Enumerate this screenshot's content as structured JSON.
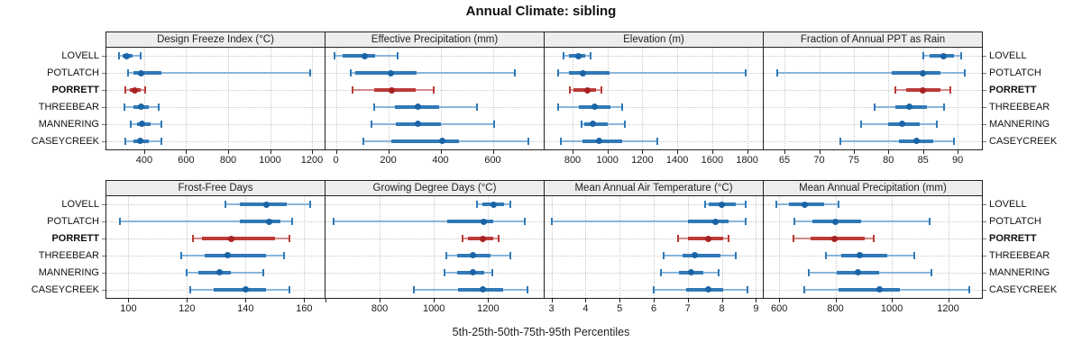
{
  "colors": {
    "blue_dot": "#1a64a5",
    "blue_bar": "#3079b6",
    "blue_whisker": "#8ab5da",
    "red_dot": "#a82123",
    "red_bar": "#bb3a38",
    "red_whisker": "#d28a8a",
    "grid": "#c9c9c9",
    "strip_bg": "#ededed",
    "border": "#222222"
  },
  "chart_data": {
    "type": "trellis interval plot (5th-25th-50th-75th-95th percentile dot-whisker, horizontal)",
    "title": "Annual Climate: sibling",
    "caption": "5th-25th-50th-75th-95th Percentiles",
    "categories": [
      "LOVELL",
      "POTLATCH",
      "PORRETT",
      "THREEBEAR",
      "MANNERING",
      "CASEYCREEK"
    ],
    "highlight": "PORRETT",
    "legend_position": "none",
    "grid": "dotted",
    "panels": [
      {
        "title": "Design Freeze Index (°C)",
        "xlim": [
          220,
          1260
        ],
        "ticks": [
          {
            "v": 400,
            "label": "400"
          },
          {
            "v": 600,
            "label": "600"
          },
          {
            "v": 800,
            "label": "800"
          },
          {
            "v": 1000,
            "label": "1000"
          },
          {
            "v": 1200,
            "label": "1200"
          }
        ],
        "percentiles": [
          [
            280,
            297,
            315,
            345,
            385
          ],
          [
            325,
            350,
            385,
            480,
            1190
          ],
          [
            310,
            330,
            355,
            385,
            405
          ],
          [
            305,
            350,
            385,
            420,
            470
          ],
          [
            335,
            365,
            390,
            430,
            480
          ],
          [
            310,
            350,
            380,
            420,
            480
          ]
        ]
      },
      {
        "title": "Effective Precipitation (mm)",
        "xlim": [
          -40,
          795
        ],
        "ticks": [
          {
            "v": 0,
            "label": "0"
          },
          {
            "v": 200,
            "label": "200"
          },
          {
            "v": 400,
            "label": "400"
          },
          {
            "v": 600,
            "label": "600"
          }
        ],
        "percentiles": [
          [
            -5,
            25,
            110,
            150,
            235
          ],
          [
            55,
            75,
            210,
            310,
            685
          ],
          [
            65,
            145,
            215,
            305,
            375
          ],
          [
            145,
            225,
            315,
            395,
            540
          ],
          [
            135,
            230,
            315,
            400,
            605
          ],
          [
            105,
            210,
            405,
            470,
            735
          ]
        ]
      },
      {
        "title": "Elevation (m)",
        "xlim": [
          640,
          1890
        ],
        "ticks": [
          {
            "v": 800,
            "label": "800"
          },
          {
            "v": 1000,
            "label": "1000"
          },
          {
            "v": 1200,
            "label": "1200"
          },
          {
            "v": 1400,
            "label": "1400"
          },
          {
            "v": 1600,
            "label": "1600"
          },
          {
            "v": 1800,
            "label": "1800"
          }
        ],
        "percentiles": [
          [
            750,
            780,
            831,
            873,
            905
          ],
          [
            715,
            780,
            858,
            1010,
            1790
          ],
          [
            785,
            805,
            884,
            933,
            965
          ],
          [
            715,
            837,
            925,
            1015,
            1085
          ],
          [
            853,
            868,
            915,
            1000,
            1098
          ],
          [
            735,
            855,
            950,
            1085,
            1285
          ]
        ]
      },
      {
        "title": "Fraction of Annual PPT as Rain",
        "xlim": [
          62,
          93.5
        ],
        "ticks": [
          {
            "v": 65,
            "label": "65"
          },
          {
            "v": 70,
            "label": "70"
          },
          {
            "v": 75,
            "label": "75"
          },
          {
            "v": 80,
            "label": "80"
          },
          {
            "v": 85,
            "label": "85"
          },
          {
            "v": 90,
            "label": "90"
          }
        ],
        "percentiles": [
          [
            85,
            86,
            88,
            89.5,
            90.5
          ],
          [
            64,
            80.5,
            85,
            87.5,
            91
          ],
          [
            81,
            82.5,
            85,
            87.5,
            89
          ],
          [
            78,
            81,
            83,
            85.5,
            88
          ],
          [
            76,
            80,
            82,
            84.5,
            87
          ],
          [
            73,
            81.5,
            84,
            86.5,
            89.5
          ]
        ]
      },
      {
        "title": "Frost-Free Days",
        "xlim": [
          92.5,
          167
        ],
        "ticks": [
          {
            "v": 100,
            "label": "100"
          },
          {
            "v": 120,
            "label": "120"
          },
          {
            "v": 140,
            "label": "140"
          },
          {
            "v": 160,
            "label": "160"
          }
        ],
        "percentiles": [
          [
            133,
            138,
            147,
            154,
            162
          ],
          [
            97,
            138,
            148,
            152,
            156
          ],
          [
            122,
            125,
            135,
            150,
            155
          ],
          [
            118,
            126,
            134,
            147,
            153
          ],
          [
            120,
            124,
            131,
            135,
            146
          ],
          [
            121,
            129,
            140,
            147,
            155
          ]
        ]
      },
      {
        "title": "Growing Degree Days (°C)",
        "xlim": [
          600,
          1405
        ],
        "ticks": [
          {
            "v": 600,
            "label": ""
          },
          {
            "v": 800,
            "label": "800"
          },
          {
            "v": 1000,
            "label": "1000"
          },
          {
            "v": 1200,
            "label": "1200"
          }
        ],
        "percentiles": [
          [
            1160,
            1178,
            1220,
            1260,
            1282
          ],
          [
            630,
            1050,
            1185,
            1218,
            1335
          ],
          [
            1105,
            1125,
            1180,
            1218,
            1240
          ],
          [
            1045,
            1085,
            1145,
            1210,
            1282
          ],
          [
            1040,
            1085,
            1145,
            1185,
            1215
          ],
          [
            925,
            1090,
            1180,
            1257,
            1345
          ]
        ]
      },
      {
        "title": "Mean Annual Air Temperature (°C)",
        "xlim": [
          2.8,
          9.2
        ],
        "ticks": [
          {
            "v": 3,
            "label": "3"
          },
          {
            "v": 4,
            "label": "4"
          },
          {
            "v": 5,
            "label": "5"
          },
          {
            "v": 6,
            "label": "6"
          },
          {
            "v": 7,
            "label": "7"
          },
          {
            "v": 8,
            "label": "8"
          },
          {
            "v": 9,
            "label": "9"
          }
        ],
        "percentiles": [
          [
            7.5,
            7.6,
            8.0,
            8.4,
            8.7
          ],
          [
            3.0,
            7.0,
            7.8,
            8.2,
            8.7
          ],
          [
            6.7,
            7.0,
            7.6,
            8.05,
            8.2
          ],
          [
            6.3,
            6.85,
            7.2,
            7.95,
            8.4
          ],
          [
            6.2,
            6.75,
            7.1,
            7.45,
            7.9
          ],
          [
            6.0,
            6.95,
            7.6,
            8.05,
            8.75
          ]
        ]
      },
      {
        "title": "Mean Annual Precipitation (mm)",
        "xlim": [
          545,
          1320
        ],
        "ticks": [
          {
            "v": 600,
            "label": "600"
          },
          {
            "v": 800,
            "label": "800"
          },
          {
            "v": 1000,
            "label": "1000"
          },
          {
            "v": 1200,
            "label": "1200"
          }
        ],
        "percentiles": [
          [
            590,
            635,
            690,
            760,
            810
          ],
          [
            655,
            717,
            800,
            890,
            1135
          ],
          [
            650,
            710,
            795,
            905,
            935
          ],
          [
            765,
            820,
            885,
            985,
            1080
          ],
          [
            705,
            805,
            880,
            955,
            1140
          ],
          [
            690,
            810,
            955,
            1030,
            1275
          ]
        ]
      }
    ]
  }
}
